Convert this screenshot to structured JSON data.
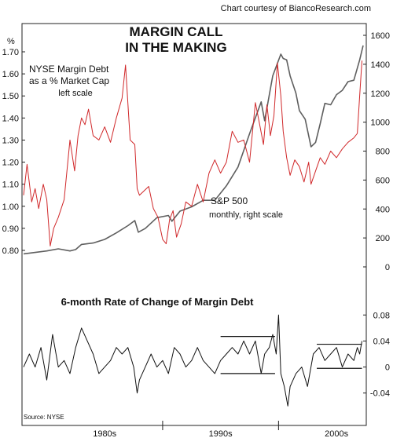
{
  "credit": "Chart courtesy of BiancoResearch.com",
  "title_lines": [
    "MARGIN CALL",
    "IN THE MAKING"
  ],
  "source": "Source: NYSE",
  "chart_data": [
    {
      "type": "line",
      "title": "MARGIN CALL IN THE MAKING",
      "x_range": [
        1978.0,
        2007.3
      ],
      "x_ticks": [
        {
          "label": "1980s",
          "at": 1985
        },
        {
          "label": "1990s",
          "at": 1995
        },
        {
          "label": "2000s",
          "at": 2005
        }
      ],
      "left_axis": {
        "unit": "%",
        "ylim": [
          0.8,
          1.7
        ],
        "ticks": [
          "0.80",
          "0.90",
          "1.00",
          "1.10",
          "1.20",
          "1.30",
          "1.40",
          "1.50",
          "1.60",
          "1.70"
        ]
      },
      "right_axis": {
        "ylim": [
          0,
          1600
        ],
        "ticks": [
          "0",
          "200",
          "400",
          "600",
          "800",
          "1000",
          "1200",
          "1400",
          "1600"
        ]
      },
      "series": [
        {
          "name": "NYSE Margin Debt as a % Market Cap",
          "axis": "left",
          "note": "left scale",
          "color": "#d0282a",
          "x": [
            1978.0,
            1978.3,
            1978.7,
            1979.0,
            1979.3,
            1979.7,
            1980.0,
            1980.3,
            1980.6,
            1981.0,
            1981.5,
            1982.0,
            1982.4,
            1982.7,
            1983.0,
            1983.3,
            1983.6,
            1984.0,
            1984.5,
            1985.0,
            1985.5,
            1986.0,
            1986.5,
            1986.8,
            1987.2,
            1987.6,
            1987.8,
            1988.0,
            1988.4,
            1988.8,
            1989.2,
            1989.6,
            1990.0,
            1990.3,
            1990.6,
            1990.9,
            1991.2,
            1991.6,
            1992.0,
            1992.5,
            1993.0,
            1993.5,
            1994.0,
            1994.5,
            1995.0,
            1995.5,
            1996.0,
            1996.5,
            1997.0,
            1997.5,
            1998.0,
            1998.3,
            1998.7,
            1999.0,
            1999.3,
            1999.6,
            1999.9,
            2000.2,
            2000.4,
            2000.7,
            2001.0,
            2001.4,
            2001.8,
            2002.2,
            2002.6,
            2002.8,
            2003.2,
            2003.6,
            2004.0,
            2004.5,
            2005.0,
            2005.5,
            2006.0,
            2006.5,
            2006.8,
            2007.0,
            2007.2
          ],
          "y": [
            1.05,
            1.19,
            1.02,
            1.08,
            0.99,
            1.1,
            1.03,
            0.82,
            0.9,
            0.95,
            1.03,
            1.3,
            1.16,
            1.32,
            1.4,
            1.37,
            1.44,
            1.32,
            1.3,
            1.36,
            1.29,
            1.4,
            1.49,
            1.64,
            1.3,
            1.28,
            1.08,
            1.05,
            1.07,
            1.09,
            0.99,
            0.95,
            0.85,
            0.83,
            0.94,
            0.98,
            0.86,
            0.92,
            1.02,
            1.0,
            1.1,
            1.02,
            1.15,
            1.21,
            1.15,
            1.2,
            1.34,
            1.29,
            1.3,
            1.2,
            1.47,
            1.39,
            1.28,
            1.46,
            1.32,
            1.41,
            1.65,
            1.5,
            1.34,
            1.22,
            1.14,
            1.21,
            1.18,
            1.11,
            1.2,
            1.1,
            1.16,
            1.22,
            1.19,
            1.25,
            1.22,
            1.26,
            1.29,
            1.31,
            1.33,
            1.5,
            1.66
          ]
        },
        {
          "name": "S&P 500",
          "axis": "right",
          "note": "monthly, right scale",
          "color": "#5f5f5f",
          "x": [
            1978.0,
            1979.0,
            1980.0,
            1981.0,
            1982.0,
            1982.5,
            1983.0,
            1984.0,
            1985.0,
            1986.0,
            1987.0,
            1987.6,
            1987.9,
            1988.5,
            1989.5,
            1990.5,
            1990.8,
            1991.5,
            1992.5,
            1993.5,
            1994.5,
            1995.5,
            1996.5,
            1997.5,
            1998.5,
            1998.8,
            1999.5,
            2000.2,
            2000.4,
            2000.7,
            2001.0,
            2001.5,
            2001.8,
            2002.3,
            2002.8,
            2003.2,
            2003.6,
            2004.0,
            2004.5,
            2005.0,
            2005.5,
            2006.0,
            2006.5,
            2007.0,
            2007.3
          ],
          "y": [
            90,
            100,
            110,
            125,
            110,
            120,
            155,
            165,
            190,
            235,
            285,
            320,
            240,
            265,
            340,
            355,
            315,
            385,
            415,
            460,
            460,
            560,
            690,
            920,
            1140,
            1010,
            1320,
            1470,
            1440,
            1430,
            1320,
            1200,
            1080,
            1020,
            830,
            860,
            990,
            1130,
            1120,
            1190,
            1220,
            1280,
            1290,
            1430,
            1530
          ]
        }
      ],
      "annotations": [
        "S&P 500",
        "monthly, right scale"
      ]
    },
    {
      "type": "line",
      "title": "6-month Rate of Change of Margin Debt",
      "ylim": [
        -0.05,
        0.09
      ],
      "ticks": [
        "-0.04",
        "0",
        "0.04",
        "0.08"
      ],
      "series": [
        {
          "name": "6-month Rate of Change of Margin Debt",
          "color": "#111111",
          "x": [
            1978.0,
            1978.5,
            1979.0,
            1979.5,
            1980.0,
            1980.5,
            1981.0,
            1981.5,
            1982.0,
            1982.5,
            1983.0,
            1983.5,
            1984.0,
            1984.5,
            1985.0,
            1985.5,
            1986.0,
            1986.5,
            1987.0,
            1987.5,
            1987.8,
            1988.0,
            1988.5,
            1989.0,
            1989.5,
            1990.0,
            1990.5,
            1991.0,
            1991.5,
            1992.0,
            1992.5,
            1993.0,
            1993.5,
            1994.0,
            1994.5,
            1995.0,
            1995.5,
            1996.0,
            1996.5,
            1997.0,
            1997.5,
            1998.0,
            1998.5,
            1998.8,
            1999.2,
            1999.5,
            1999.8,
            2000.0,
            2000.2,
            2000.5,
            2000.8,
            2001.0,
            2001.5,
            2002.0,
            2002.5,
            2003.0,
            2003.5,
            2004.0,
            2004.5,
            2005.0,
            2005.5,
            2006.0,
            2006.5,
            2006.8,
            2007.0,
            2007.2
          ],
          "y": [
            0.0,
            0.02,
            0.0,
            0.03,
            -0.02,
            0.05,
            0.0,
            0.01,
            -0.01,
            0.03,
            0.06,
            0.04,
            0.02,
            -0.01,
            0.0,
            0.01,
            0.03,
            0.02,
            0.03,
            0.0,
            -0.04,
            -0.02,
            0.0,
            0.02,
            0.0,
            0.01,
            -0.01,
            0.03,
            0.02,
            0.0,
            0.01,
            0.03,
            0.01,
            0.0,
            -0.01,
            0.01,
            0.02,
            0.03,
            0.02,
            0.04,
            0.02,
            0.04,
            -0.01,
            0.02,
            0.03,
            0.05,
            0.02,
            0.08,
            -0.01,
            -0.03,
            -0.06,
            -0.03,
            -0.01,
            0.0,
            -0.03,
            0.02,
            0.03,
            0.01,
            0.02,
            0.03,
            0.0,
            0.02,
            0.01,
            0.03,
            0.02,
            0.04
          ]
        }
      ],
      "reference_levels": [
        {
          "x_from": 1995.0,
          "x_to": 1999.7,
          "y": 0.047
        },
        {
          "x_from": 1995.0,
          "x_to": 1999.7,
          "y": -0.01
        },
        {
          "x_from": 2003.3,
          "x_to": 2007.2,
          "y": 0.035
        },
        {
          "x_from": 2003.3,
          "x_to": 2007.2,
          "y": -0.002
        }
      ]
    }
  ]
}
